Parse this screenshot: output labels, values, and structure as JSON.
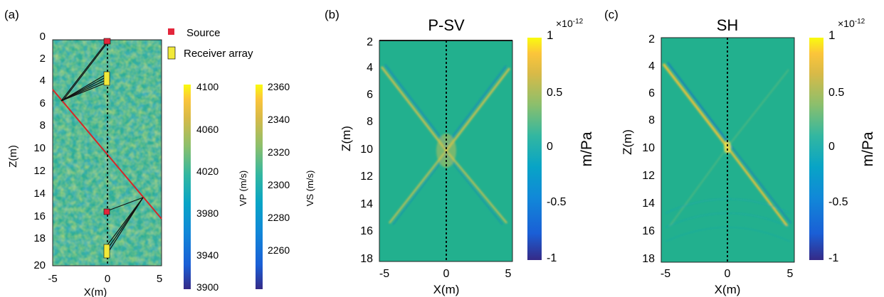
{
  "panels": [
    {
      "letter": "(a)",
      "title": "",
      "xlabel": "X(m)",
      "ylabel": "Z(m)",
      "x_ticks": [
        "-5",
        "0",
        "5"
      ],
      "z_ticks": [
        "0",
        "2",
        "4",
        "6",
        "8",
        "10",
        "12",
        "14",
        "16",
        "18",
        "20"
      ],
      "legend": {
        "source_label": "Source",
        "receiver_label": "Receiver array"
      },
      "colorbars": [
        {
          "label": "VP (m/s)",
          "ticks": [
            "4100",
            "4060",
            "4020",
            "3980",
            "3940",
            "3900"
          ]
        },
        {
          "label": "VS (m/s)",
          "ticks": [
            "2360",
            "2340",
            "2320",
            "2300",
            "2280",
            "2260"
          ]
        }
      ]
    },
    {
      "letter": "(b)",
      "title": "P-SV",
      "xlabel": "X(m)",
      "ylabel": "Z(m)",
      "x_ticks": [
        "-5",
        "0",
        "5"
      ],
      "z_ticks": [
        "2",
        "4",
        "6",
        "8",
        "10",
        "12",
        "14",
        "16",
        "18"
      ],
      "colorbar": {
        "label": "m/Pa",
        "exponent": "×10",
        "power": "-12",
        "ticks": [
          "1",
          "0.5",
          "0",
          "-0.5",
          "-1"
        ]
      }
    },
    {
      "letter": "(c)",
      "title": "SH",
      "xlabel": "X(m)",
      "ylabel": "Z(m)",
      "x_ticks": [
        "-5",
        "0",
        "5"
      ],
      "z_ticks": [
        "2",
        "4",
        "6",
        "8",
        "10",
        "12",
        "14",
        "16",
        "18"
      ],
      "colorbar": {
        "label": "m/Pa",
        "exponent": "×10",
        "power": "-12",
        "ticks": [
          "1",
          "0.5",
          "0",
          "-0.5",
          "-1"
        ]
      }
    }
  ],
  "colors": {
    "field": "#22b08e",
    "parula_low": "#352a87",
    "parula_high": "#f9fb0e",
    "interface": "#d62728",
    "source": "#e3263b",
    "receiver": "#f2e93a"
  }
}
